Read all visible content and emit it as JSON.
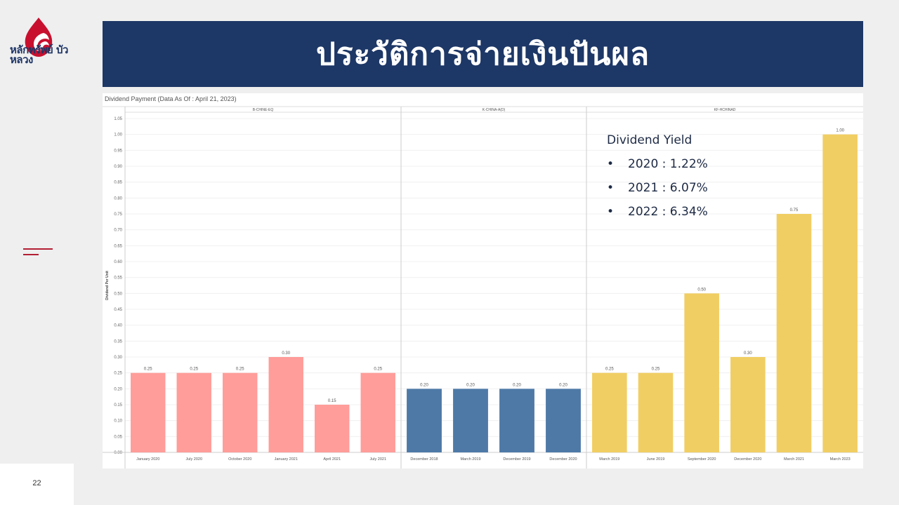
{
  "header": {
    "brand_logo_text": "หลักทรัพย์ บัวหลวง",
    "title": "ประวัติการจ่ายเงินปันผล",
    "page_number": "22"
  },
  "chart_header": "Dividend Payment   (Data As Of : April 21, 2023)",
  "dividend_yield": {
    "title": "Dividend Yield",
    "items": [
      "2020 : 1.22%",
      "2021 : 6.07%",
      "2022 : 6.34%"
    ]
  },
  "colors": {
    "title_bar": "#1d3766",
    "b_china": "#ff9d9a",
    "k_china": "#4e79a7",
    "kf_hchinad": "#f1ce63",
    "brand_red": "#c8102e"
  },
  "chart_data": {
    "type": "bar",
    "ylabel": "Dividend Per Unit",
    "ylim": [
      0,
      1.05
    ],
    "yticks": [
      "0.00",
      "0.05",
      "0.10",
      "0.15",
      "0.20",
      "0.25",
      "0.30",
      "0.35",
      "0.40",
      "0.45",
      "0.50",
      "0.55",
      "0.60",
      "0.65",
      "0.70",
      "0.75",
      "0.80",
      "0.85",
      "0.90",
      "0.95",
      "1.00",
      "1.05"
    ],
    "grid": true,
    "panels": [
      {
        "name": "B-CHINE-EQ",
        "color": "#ff9d9a",
        "categories": [
          "January 2020",
          "July 2020",
          "October 2020",
          "January 2021",
          "April 2021",
          "July 2021"
        ],
        "values": [
          0.25,
          0.25,
          0.25,
          0.3,
          0.15,
          0.25
        ],
        "labels": [
          "0.25",
          "0.25",
          "0.25",
          "0.30",
          "0.15",
          "0.25"
        ]
      },
      {
        "name": "K-CHINA-A(D)",
        "color": "#4e79a7",
        "categories": [
          "December 2018",
          "March 2019",
          "December 2019",
          "December 2020"
        ],
        "values": [
          0.2,
          0.2,
          0.2,
          0.2
        ],
        "labels": [
          "0.20",
          "0.20",
          "0.20",
          "0.20"
        ]
      },
      {
        "name": "KF-HCHINAD",
        "color": "#f1ce63",
        "categories": [
          "March 2019",
          "June 2019",
          "September 2020",
          "December 2020",
          "March 2021",
          "March 2023"
        ],
        "values": [
          0.25,
          0.25,
          0.5,
          0.3,
          0.75,
          1.0
        ],
        "labels": [
          "0.25",
          "0.25",
          "0.50",
          "0.30",
          "0.75",
          "1.00"
        ]
      }
    ]
  }
}
